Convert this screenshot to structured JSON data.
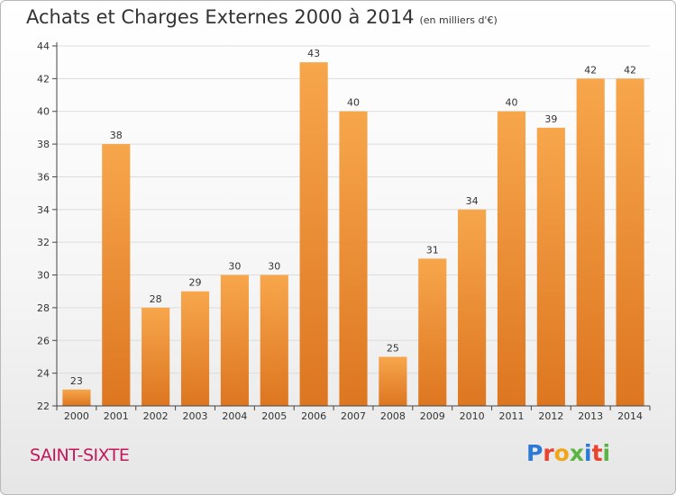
{
  "header": {
    "title": "Achats et Charges Externes 2000 à 2014",
    "subtitle": "(en milliers d'€)"
  },
  "footer": {
    "commune": "SAINT-SIXTE",
    "brand_letters": [
      "P",
      "r",
      "o",
      "x",
      "i",
      "t",
      "i"
    ],
    "brand_colors": [
      "#2b7bd6",
      "#e8432e",
      "#f1a51a",
      "#5ab543",
      "#2b7bd6",
      "#e8432e",
      "#5ab543"
    ]
  },
  "colors": {
    "bar_light": "#f7a64c",
    "bar_dark": "#dd7620",
    "axis": "#444444",
    "grid": "#dcdcdc"
  },
  "chart_data": {
    "type": "bar",
    "title": "Achats et Charges Externes 2000 à 2014",
    "subtitle": "(en milliers d'€)",
    "categories": [
      "2000",
      "2001",
      "2002",
      "2003",
      "2004",
      "2005",
      "2006",
      "2007",
      "2008",
      "2009",
      "2010",
      "2011",
      "2012",
      "2013",
      "2014"
    ],
    "values": [
      23,
      38,
      28,
      29,
      30,
      30,
      43,
      40,
      25,
      31,
      34,
      40,
      39,
      42,
      42
    ],
    "data_labels": [
      "23",
      "38",
      "28",
      "29",
      "30",
      "30",
      "43",
      "40",
      "25",
      "31",
      "34",
      "40",
      "39",
      "42",
      "42"
    ],
    "ylim": [
      22,
      44
    ],
    "yticks": [
      "22",
      "24",
      "26",
      "28",
      "30",
      "32",
      "34",
      "36",
      "38",
      "40",
      "42",
      "44"
    ],
    "grid": true,
    "xlabel": "",
    "ylabel": ""
  }
}
